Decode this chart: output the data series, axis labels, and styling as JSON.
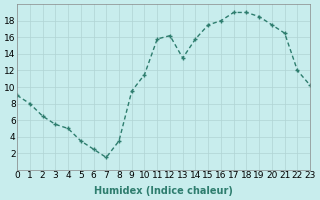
{
  "x": [
    0,
    1,
    2,
    3,
    4,
    5,
    6,
    7,
    8,
    9,
    10,
    11,
    12,
    13,
    14,
    15,
    16,
    17,
    18,
    19,
    20,
    21,
    22,
    23
  ],
  "y": [
    9,
    8,
    6.5,
    5.5,
    5,
    3.5,
    2.5,
    1.5,
    3.5,
    9.5,
    11.5,
    15.8,
    16.2,
    13.5,
    15.8,
    17.5,
    18,
    19,
    19,
    18.5,
    17.5,
    16.5,
    12,
    10.2
  ],
  "line_color": "#2e7d6e",
  "bg_color": "#c8eded",
  "grid_color": "#b0d4d4",
  "xlabel": "Humidex (Indice chaleur)",
  "xlim": [
    0,
    23
  ],
  "ylim": [
    0,
    20
  ],
  "yticks": [
    2,
    4,
    6,
    8,
    10,
    12,
    14,
    16,
    18
  ],
  "xticks": [
    0,
    1,
    2,
    3,
    4,
    5,
    6,
    7,
    8,
    9,
    10,
    11,
    12,
    13,
    14,
    15,
    16,
    17,
    18,
    19,
    20,
    21,
    22,
    23
  ],
  "xlabel_fontsize": 7,
  "tick_fontsize": 6.5,
  "linewidth": 1.0,
  "markersize": 3.5
}
